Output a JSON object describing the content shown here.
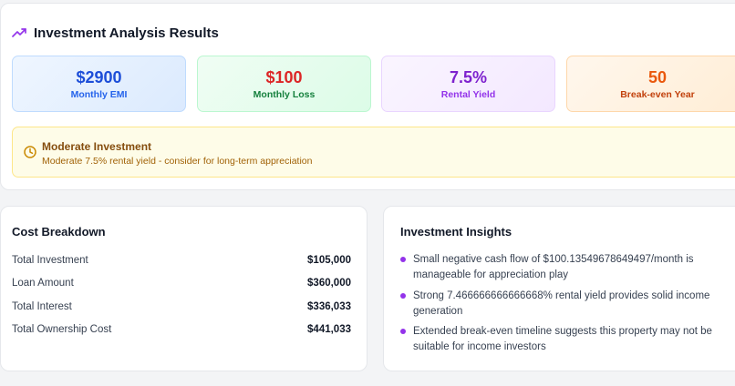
{
  "results": {
    "title": "Investment Analysis Results",
    "metrics": [
      {
        "value": "$2900",
        "label": "Monthly EMI"
      },
      {
        "value": "$100",
        "label": "Monthly Loss"
      },
      {
        "value": "7.5%",
        "label": "Rental Yield"
      },
      {
        "value": "50",
        "label": "Break-even Year"
      }
    ],
    "alert": {
      "title": "Moderate Investment",
      "message": "Moderate 7.5% rental yield - consider for long-term appreciation"
    }
  },
  "cost_breakdown": {
    "title": "Cost Breakdown",
    "rows": [
      {
        "label": "Total Investment",
        "value": "$105,000"
      },
      {
        "label": "Loan Amount",
        "value": "$360,000"
      },
      {
        "label": "Total Interest",
        "value": "$336,033"
      },
      {
        "label": "Total Ownership Cost",
        "value": "$441,033"
      }
    ]
  },
  "insights": {
    "title": "Investment Insights",
    "items": [
      "Small negative cash flow of $100.13549678649497/month is manageable for appreciation play",
      "Strong 7.466666666666668% rental yield provides solid income generation",
      "Extended break-even timeline suggests this property may not be suitable for income investors"
    ]
  },
  "colors": {
    "accent_purple": "#9333ea",
    "loss_red": "#dc2626",
    "alert_amber": "#854d0e"
  },
  "icons": {
    "header": "trending-up-icon",
    "alert": "clock-icon",
    "bullet": "bullet-dot-icon"
  }
}
